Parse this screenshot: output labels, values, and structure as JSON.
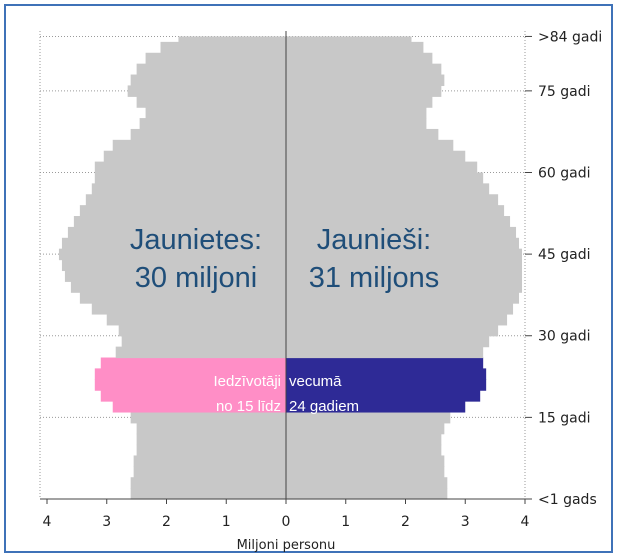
{
  "chart_data": {
    "type": "bar",
    "orientation": "horizontal",
    "subtype": "population-pyramid",
    "xlabel": "Miljoni personu",
    "x_ticks": [
      "4",
      "3",
      "2",
      "1",
      "0",
      "1",
      "2",
      "3",
      "4"
    ],
    "xlim": [
      -4,
      4
    ],
    "age_labels": [
      ">84 gadi",
      "75 gadi",
      "60 gadi",
      "45 gadi",
      "30 gadi",
      "15 gadi",
      "<1 gads"
    ],
    "age_label_values": [
      85,
      75,
      60,
      45,
      30,
      15,
      0
    ],
    "ylim": [
      0,
      86
    ],
    "grid": true,
    "colors": {
      "base": "#c8c8c8",
      "female_highlight": "#ff8ec6",
      "male_highlight": "#2e2a96",
      "text": "#1f4e79"
    },
    "highlight_range": [
      15,
      24
    ],
    "annotations": {
      "female": [
        "Jaunietes:",
        "30 miljoni"
      ],
      "male": [
        "Jaunieši:",
        "31 miljons"
      ],
      "band_left": [
        "Iedzīvotāji",
        "no 15 līdz"
      ],
      "band_right": [
        "vecumā",
        "24 gadiem"
      ]
    },
    "series": [
      {
        "side": "female",
        "ages": [
          0,
          2,
          4,
          6,
          8,
          10,
          12,
          14,
          16,
          18,
          20,
          22,
          24,
          26,
          28,
          30,
          32,
          34,
          36,
          38,
          40,
          42,
          44,
          46,
          48,
          50,
          52,
          54,
          56,
          58,
          60,
          62,
          64,
          66,
          68,
          70,
          72,
          74,
          76,
          78,
          80,
          82,
          84,
          85
        ],
        "values": [
          2.6,
          2.6,
          2.55,
          2.55,
          2.5,
          2.5,
          2.5,
          2.6,
          2.9,
          3.1,
          3.2,
          3.2,
          3.1,
          2.85,
          2.75,
          2.8,
          3.0,
          3.25,
          3.45,
          3.6,
          3.7,
          3.75,
          3.8,
          3.75,
          3.65,
          3.55,
          3.45,
          3.35,
          3.25,
          3.2,
          3.2,
          3.05,
          2.9,
          2.6,
          2.45,
          2.35,
          2.5,
          2.65,
          2.6,
          2.5,
          2.35,
          2.1,
          1.8,
          1.5
        ]
      },
      {
        "side": "male",
        "ages": [
          0,
          2,
          4,
          6,
          8,
          10,
          12,
          14,
          16,
          18,
          20,
          22,
          24,
          26,
          28,
          30,
          32,
          34,
          36,
          38,
          40,
          42,
          44,
          46,
          48,
          50,
          52,
          54,
          56,
          58,
          60,
          62,
          64,
          66,
          68,
          70,
          72,
          74,
          76,
          78,
          80,
          82,
          84,
          85
        ],
        "values": [
          2.7,
          2.7,
          2.65,
          2.65,
          2.6,
          2.6,
          2.65,
          2.75,
          3.0,
          3.25,
          3.35,
          3.35,
          3.3,
          3.3,
          3.4,
          3.55,
          3.7,
          3.8,
          3.9,
          3.95,
          3.95,
          3.95,
          3.95,
          3.9,
          3.85,
          3.75,
          3.65,
          3.55,
          3.4,
          3.3,
          3.2,
          3.0,
          2.8,
          2.55,
          2.35,
          2.35,
          2.45,
          2.6,
          2.65,
          2.6,
          2.45,
          2.3,
          2.1,
          1.85
        ]
      }
    ]
  }
}
